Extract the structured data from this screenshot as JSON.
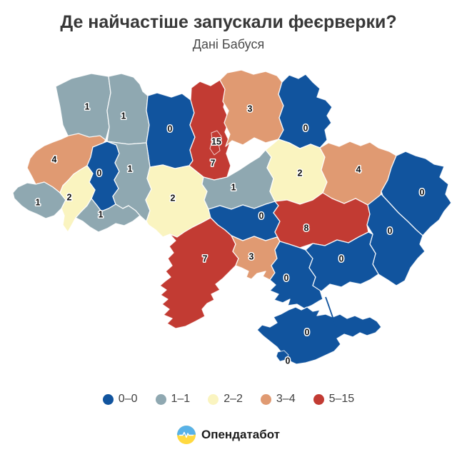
{
  "header": {
    "title": "Де найчастіше запускали феєрверки?",
    "subtitle": "Дані Бабуся"
  },
  "legend": {
    "items": [
      {
        "label": "0–0",
        "bin": "bin0"
      },
      {
        "label": "1–1",
        "bin": "bin1"
      },
      {
        "label": "2–2",
        "bin": "bin2"
      },
      {
        "label": "3–4",
        "bin": "bin3"
      },
      {
        "label": "5–15",
        "bin": "bin4"
      }
    ]
  },
  "footer": {
    "brand": "Опендатабот"
  },
  "colors": {
    "bin0": "#11549e",
    "bin1": "#8fa8b1",
    "bin2": "#faf4c0",
    "bin3": "#e09a72",
    "bin4": "#c23b33",
    "title": "#383838",
    "subtitle": "#4a4a4a",
    "legend_text": "#3f3f3f",
    "label_fill": "#111111",
    "label_halo": "#ffffff",
    "logo_blue": "#58b2e8",
    "logo_yellow": "#ffd940",
    "background": "#ffffff"
  },
  "chart_data": {
    "type": "choropleth",
    "geography": "Ukraine oblasts",
    "title": "Де найчастіше запускали феєрверки?",
    "subtitle": "Дані Бабуся",
    "legend_position": "bottom",
    "legend_bins": [
      {
        "range": "0–0",
        "color": "#11549e"
      },
      {
        "range": "1–1",
        "color": "#8fa8b1"
      },
      {
        "range": "2–2",
        "color": "#faf4c0"
      },
      {
        "range": "3–4",
        "color": "#e09a72"
      },
      {
        "range": "5–15",
        "color": "#c23b33"
      }
    ],
    "regions": [
      {
        "id": "volyn",
        "value": 1,
        "bin": "bin1"
      },
      {
        "id": "rivne",
        "value": 1,
        "bin": "bin1"
      },
      {
        "id": "zhytomyr",
        "value": 0,
        "bin": "bin0"
      },
      {
        "id": "kyiv-oblast",
        "value": 7,
        "bin": "bin4"
      },
      {
        "id": "kyiv-city",
        "value": 15,
        "bin": "bin4"
      },
      {
        "id": "chernihiv",
        "value": 3,
        "bin": "bin3"
      },
      {
        "id": "sumy",
        "value": 0,
        "bin": "bin0"
      },
      {
        "id": "lviv",
        "value": 4,
        "bin": "bin3"
      },
      {
        "id": "ternopil",
        "value": 0,
        "bin": "bin0"
      },
      {
        "id": "khmelnytskyi",
        "value": 1,
        "bin": "bin1"
      },
      {
        "id": "zakarpattia",
        "value": 1,
        "bin": "bin1"
      },
      {
        "id": "ivano-frankivsk",
        "value": 2,
        "bin": "bin2"
      },
      {
        "id": "chernivtsi",
        "value": 1,
        "bin": "bin1"
      },
      {
        "id": "vinnytsia",
        "value": 2,
        "bin": "bin2"
      },
      {
        "id": "cherkasy",
        "value": 1,
        "bin": "bin1"
      },
      {
        "id": "poltava",
        "value": 2,
        "bin": "bin2"
      },
      {
        "id": "kharkiv",
        "value": 4,
        "bin": "bin3"
      },
      {
        "id": "luhansk",
        "value": 0,
        "bin": "bin0"
      },
      {
        "id": "kirovohrad",
        "value": 0,
        "bin": "bin0"
      },
      {
        "id": "dnipropetrovsk",
        "value": 8,
        "bin": "bin4"
      },
      {
        "id": "donetsk",
        "value": 0,
        "bin": "bin0"
      },
      {
        "id": "odesa",
        "value": 7,
        "bin": "bin4"
      },
      {
        "id": "mykolaiv",
        "value": 3,
        "bin": "bin3"
      },
      {
        "id": "kherson",
        "value": 0,
        "bin": "bin0"
      },
      {
        "id": "zaporizhzhia",
        "value": 0,
        "bin": "bin0"
      },
      {
        "id": "crimea",
        "value": 0,
        "bin": "bin0"
      },
      {
        "id": "sevastopol",
        "value": 0,
        "bin": "bin0"
      }
    ]
  }
}
